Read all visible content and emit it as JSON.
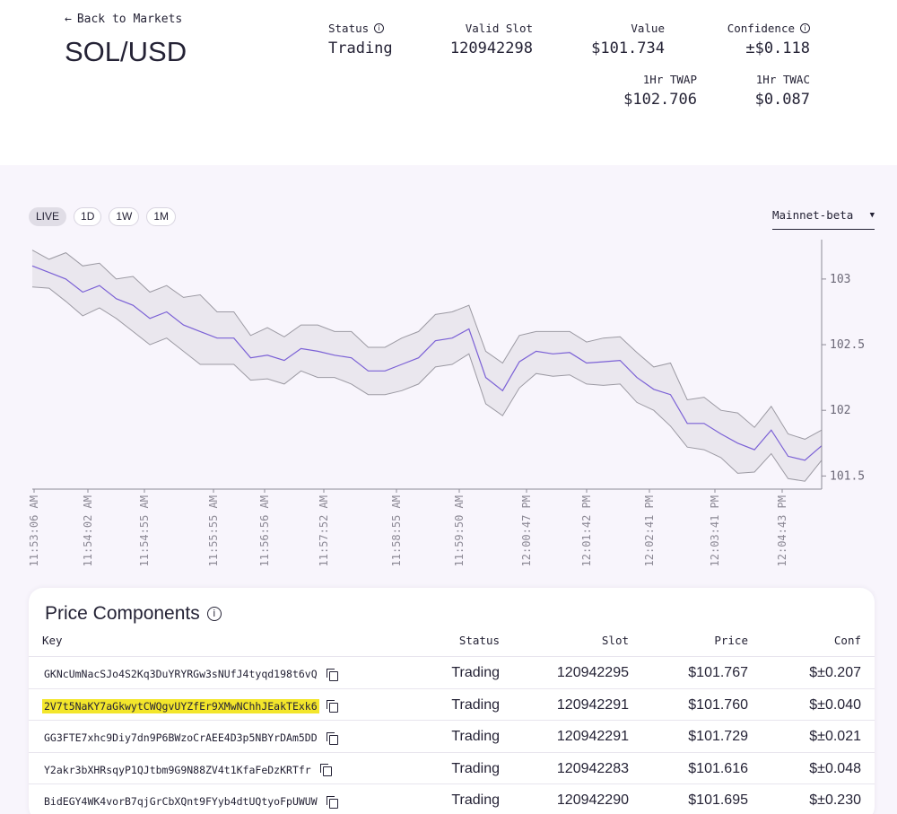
{
  "header": {
    "back_label": "Back to Markets",
    "pair": "SOL/USD",
    "stats": {
      "status": {
        "label": "Status",
        "value": "Trading"
      },
      "valid_slot": {
        "label": "Valid Slot",
        "value": "120942298"
      },
      "value": {
        "label": "Value",
        "value": "$101.734"
      },
      "confidence": {
        "label": "Confidence",
        "value": "±$0.118"
      },
      "twap": {
        "label": "1Hr TWAP",
        "value": "$102.706"
      },
      "twac": {
        "label": "1Hr TWAC",
        "value": "$0.087"
      }
    }
  },
  "chart": {
    "ranges": [
      "LIVE",
      "1D",
      "1W",
      "1M"
    ],
    "active_range": "LIVE",
    "network": "Mainnet-beta",
    "colors": {
      "price_line": "#7b61d6",
      "band_fill": "#eae7ee",
      "band_stroke": "#9c9aa3",
      "axis": "#8d8a96"
    }
  },
  "chart_data": {
    "type": "line",
    "series": [
      {
        "name": "",
        "kind": "price",
        "values": [
          103.1,
          103.05,
          103.0,
          102.9,
          102.95,
          102.85,
          102.8,
          102.7,
          102.75,
          102.65,
          102.6,
          102.55,
          102.55,
          102.4,
          102.42,
          102.38,
          102.47,
          102.45,
          102.42,
          102.4,
          102.3,
          102.3,
          102.35,
          102.4,
          102.53,
          102.55,
          102.62,
          102.25,
          102.15,
          102.37,
          102.45,
          102.43,
          102.44,
          102.36,
          102.37,
          102.38,
          102.25,
          102.16,
          102.12,
          101.9,
          101.9,
          101.82,
          101.75,
          101.7,
          101.85,
          101.65,
          101.62,
          101.73
        ]
      },
      {
        "name": "",
        "kind": "conf_upper",
        "values": [
          103.22,
          103.15,
          103.2,
          103.1,
          103.12,
          103.0,
          103.02,
          102.9,
          102.95,
          102.86,
          102.88,
          102.75,
          102.75,
          102.57,
          102.63,
          102.56,
          102.65,
          102.65,
          102.6,
          102.6,
          102.48,
          102.48,
          102.55,
          102.6,
          102.73,
          102.75,
          102.8,
          102.45,
          102.36,
          102.57,
          102.6,
          102.6,
          102.6,
          102.52,
          102.55,
          102.56,
          102.44,
          102.33,
          102.36,
          102.08,
          102.1,
          102.0,
          101.98,
          101.87,
          102.03,
          101.82,
          101.78,
          101.85
        ]
      },
      {
        "name": "",
        "kind": "conf_lower",
        "values": [
          102.94,
          102.93,
          102.83,
          102.72,
          102.78,
          102.7,
          102.6,
          102.5,
          102.55,
          102.45,
          102.35,
          102.35,
          102.35,
          102.23,
          102.24,
          102.2,
          102.3,
          102.25,
          102.25,
          102.2,
          102.12,
          102.12,
          102.15,
          102.2,
          102.33,
          102.35,
          102.43,
          102.05,
          101.96,
          102.17,
          102.28,
          102.26,
          102.27,
          102.2,
          102.19,
          102.2,
          102.06,
          102.0,
          101.88,
          101.72,
          101.7,
          101.64,
          101.52,
          101.53,
          101.67,
          101.48,
          101.46,
          101.62
        ]
      }
    ],
    "x_tick_labels": [
      "11:53:06 AM",
      "11:54:02 AM",
      "11:54:55 AM",
      "11:55:55 AM",
      "11:56:56 AM",
      "11:57:52 AM",
      "11:58:55 AM",
      "11:59:50 AM",
      "12:00:47 PM",
      "12:01:42 PM",
      "12:02:41 PM",
      "12:03:41 PM",
      "12:04:43 PM"
    ],
    "y_ticks": [
      103,
      102.5,
      102,
      101.5
    ],
    "ylim": [
      101.4,
      103.3
    ],
    "title": "",
    "xlabel": "",
    "ylabel": "",
    "grid": false,
    "y_axis_side": "right"
  },
  "components": {
    "title": "Price Components",
    "headers": {
      "key": "Key",
      "status": "Status",
      "slot": "Slot",
      "price": "Price",
      "conf": "Conf"
    },
    "rows": [
      {
        "key": "GKNcUmNacSJo4S2Kq3DuYRYRGw3sNUfJ4tyqd198t6vQ",
        "status": "Trading",
        "slot": "120942295",
        "price": "$101.767",
        "conf": "$±0.207",
        "highlighted": false
      },
      {
        "key": "2V7t5NaKY7aGkwytCWQgvUYZfEr9XMwNChhJEakTExk6",
        "status": "Trading",
        "slot": "120942291",
        "price": "$101.760",
        "conf": "$±0.040",
        "highlighted": true
      },
      {
        "key": "GG3FTE7xhc9Diy7dn9P6BWzoCrAEE4D3p5NBYrDAm5DD",
        "status": "Trading",
        "slot": "120942291",
        "price": "$101.729",
        "conf": "$±0.021",
        "highlighted": false
      },
      {
        "key": "Y2akr3bXHRsqyP1QJtbm9G9N88ZV4t1KfaFeDzKRTfr",
        "status": "Trading",
        "slot": "120942283",
        "price": "$101.616",
        "conf": "$±0.048",
        "highlighted": false
      },
      {
        "key": "BidEGY4WK4vorB7qjGrCbXQnt9FYyb4dtUQtyoFpUWUW",
        "status": "Trading",
        "slot": "120942290",
        "price": "$101.695",
        "conf": "$±0.230",
        "highlighted": false
      }
    ]
  }
}
